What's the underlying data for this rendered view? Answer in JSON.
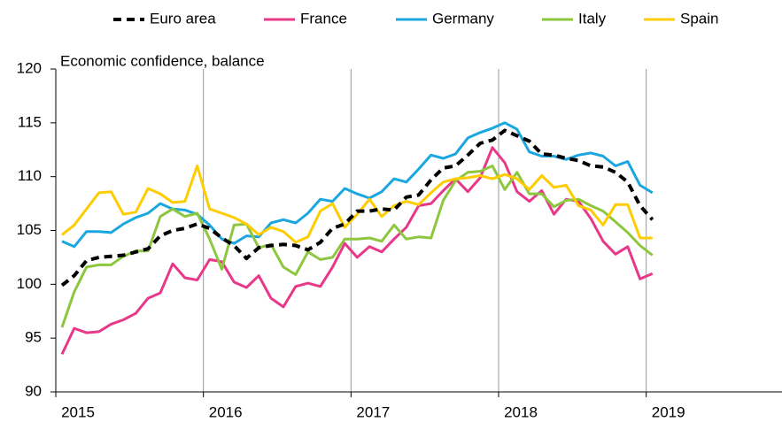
{
  "chart_data": {
    "type": "line",
    "annotation": "Economic confidence, balance",
    "x": [
      2015.042,
      2015.125,
      2015.208,
      2015.292,
      2015.375,
      2015.458,
      2015.542,
      2015.625,
      2015.708,
      2015.792,
      2015.875,
      2015.958,
      2016.042,
      2016.125,
      2016.208,
      2016.292,
      2016.375,
      2016.458,
      2016.542,
      2016.625,
      2016.708,
      2016.792,
      2016.875,
      2016.958,
      2017.042,
      2017.125,
      2017.208,
      2017.292,
      2017.375,
      2017.458,
      2017.542,
      2017.625,
      2017.708,
      2017.792,
      2017.875,
      2017.958,
      2018.042,
      2018.125,
      2018.208,
      2018.292,
      2018.375,
      2018.458,
      2018.542,
      2018.625,
      2018.708,
      2018.792,
      2018.875,
      2018.958,
      2019.042
    ],
    "series": [
      {
        "name": "Euro area",
        "color": "#000000",
        "dashed": true,
        "values": [
          99.9,
          100.8,
          102.2,
          102.5,
          102.6,
          102.7,
          103.0,
          103.3,
          104.5,
          105.0,
          105.2,
          105.6,
          105.2,
          104.3,
          103.6,
          102.4,
          103.4,
          103.6,
          103.7,
          103.6,
          103.2,
          103.9,
          105.2,
          105.6,
          106.8,
          106.8,
          107.0,
          106.9,
          108.1,
          108.3,
          109.7,
          110.8,
          111.0,
          112.0,
          113.1,
          113.4,
          114.3,
          113.8,
          113.3,
          112.1,
          112.0,
          111.7,
          111.5,
          111.0,
          110.9,
          110.4,
          109.5,
          107.3,
          106.0
        ]
      },
      {
        "name": "France",
        "color": "#e8388a",
        "values": [
          93.5,
          95.9,
          95.5,
          95.6,
          96.3,
          96.7,
          97.3,
          98.7,
          99.2,
          101.9,
          100.6,
          100.4,
          102.3,
          102.1,
          100.2,
          99.7,
          100.8,
          98.7,
          97.9,
          99.8,
          100.1,
          99.8,
          101.6,
          103.8,
          102.5,
          103.5,
          103.0,
          104.2,
          105.3,
          107.3,
          107.5,
          108.7,
          109.8,
          108.6,
          109.9,
          112.7,
          111.3,
          108.6,
          107.7,
          108.7,
          106.5,
          107.9,
          107.7,
          106.1,
          104.0,
          102.8,
          103.5,
          100.5,
          101.0
        ]
      },
      {
        "name": "Germany",
        "color": "#1aa7e0",
        "values": [
          104.0,
          103.5,
          104.9,
          104.9,
          104.8,
          105.6,
          106.2,
          106.6,
          107.5,
          107.0,
          106.9,
          106.5,
          105.5,
          104.2,
          103.8,
          104.5,
          104.4,
          105.7,
          106.0,
          105.7,
          106.6,
          107.9,
          107.7,
          108.9,
          108.4,
          108.0,
          108.6,
          109.8,
          109.5,
          110.7,
          112.0,
          111.7,
          112.1,
          113.6,
          114.1,
          114.5,
          115.0,
          114.4,
          112.3,
          111.9,
          111.9,
          111.6,
          112.0,
          112.2,
          111.9,
          111.0,
          111.4,
          109.2,
          108.5
        ]
      },
      {
        "name": "Italy",
        "color": "#8dc63f",
        "values": [
          96.0,
          99.3,
          101.6,
          101.8,
          101.8,
          102.6,
          103.1,
          103.1,
          106.3,
          107.0,
          106.3,
          106.6,
          104.2,
          101.4,
          105.5,
          105.6,
          103.4,
          103.7,
          101.6,
          100.9,
          103.0,
          102.3,
          102.5,
          104.2,
          104.2,
          104.3,
          104.0,
          105.5,
          104.2,
          104.4,
          104.3,
          107.8,
          109.6,
          110.4,
          110.5,
          111.0,
          108.8,
          110.4,
          108.4,
          108.4,
          107.2,
          107.8,
          107.9,
          107.3,
          106.8,
          105.8,
          104.8,
          103.6,
          102.7
        ]
      },
      {
        "name": "Spain",
        "color": "#ffcc00",
        "values": [
          104.6,
          105.5,
          107.0,
          108.5,
          108.6,
          106.5,
          106.7,
          108.9,
          108.4,
          107.6,
          107.7,
          111.0,
          107.0,
          106.6,
          106.2,
          105.6,
          104.6,
          105.3,
          104.9,
          103.9,
          104.4,
          106.8,
          107.5,
          105.3,
          106.5,
          107.9,
          106.3,
          107.3,
          107.7,
          107.4,
          108.5,
          109.5,
          109.8,
          109.9,
          110.1,
          109.8,
          110.2,
          109.8,
          108.8,
          110.1,
          109.0,
          109.2,
          107.3,
          106.9,
          105.5,
          107.4,
          107.4,
          104.3,
          104.3
        ]
      }
    ],
    "xlim": [
      2015,
      2019.92
    ],
    "xticks": [
      2015,
      2016,
      2017,
      2018,
      2019
    ],
    "ylim": [
      90,
      120
    ],
    "yticks": [
      90,
      95,
      100,
      105,
      110,
      115,
      120
    ],
    "grid": "x",
    "legend": "top"
  }
}
